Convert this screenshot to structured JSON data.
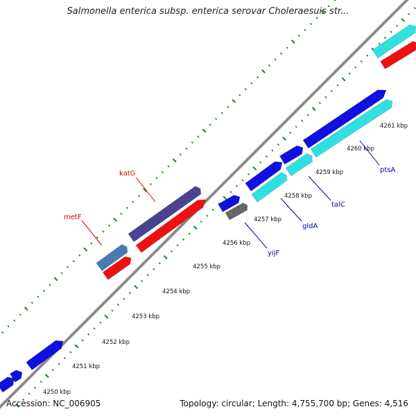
{
  "title": "Salmonella enterica subsp. enterica serovar Choleraesuis str...",
  "footer": {
    "accession": "Accession: NC_006905",
    "topology": "Topology: circular; Length: 4,755,700 bp; Genes: 4,516"
  },
  "colors": {
    "backbone": "#8a8a8a",
    "tick": "#2a8a2a",
    "cds_forward": "#1010e0",
    "cds_highlight": "#2fe0e0",
    "rna": "#ee1111",
    "katG": "#4a4490",
    "metF": "#4a7ab0",
    "yijF": "#666666",
    "label_red": "#cc0000",
    "label_blue": "#0000aa"
  },
  "scale": {
    "unit": "kbp",
    "ticks": [
      "4250 kbp",
      "4251 kbp",
      "4252 kbp",
      "4253 kbp",
      "4254 kbp",
      "4255 kbp",
      "4256 kbp",
      "4257 kbp",
      "4258 kbp",
      "4259 kbp",
      "4260 kbp",
      "4261 kbp"
    ]
  },
  "gene_labels": [
    {
      "name": "katG",
      "color": "label_red"
    },
    {
      "name": "metF",
      "color": "label_red"
    },
    {
      "name": "yijF",
      "color": "label_blue"
    },
    {
      "name": "gldA",
      "color": "label_blue"
    },
    {
      "name": "talC",
      "color": "label_blue"
    },
    {
      "name": "ptsA",
      "color": "label_blue"
    }
  ]
}
